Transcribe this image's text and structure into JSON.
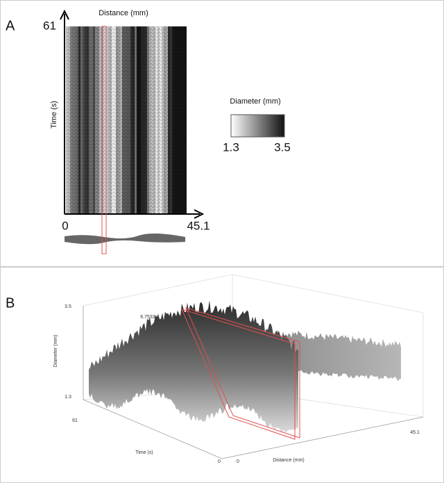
{
  "panel_a": {
    "label": "A",
    "y_top": "61",
    "x_axis_title": "Distance (mm)",
    "y_axis_title": "Time (s)",
    "x_start": "0",
    "x_end": "45.1",
    "colorbar": {
      "title": "Diameter (mm)",
      "min": "1.3",
      "max": "3.5"
    }
  },
  "panel_b": {
    "label": "B",
    "z_top": "3.5",
    "z_axis_title": "Diameter (mm)",
    "annotation": "6.7533",
    "z_bottom": "1.3",
    "time_start": "61",
    "time_axis_title": "Time (s)",
    "time_end": "0",
    "distance_start": "0",
    "distance_axis_title": "Distance (mm)",
    "distance_end": "45.1"
  }
}
